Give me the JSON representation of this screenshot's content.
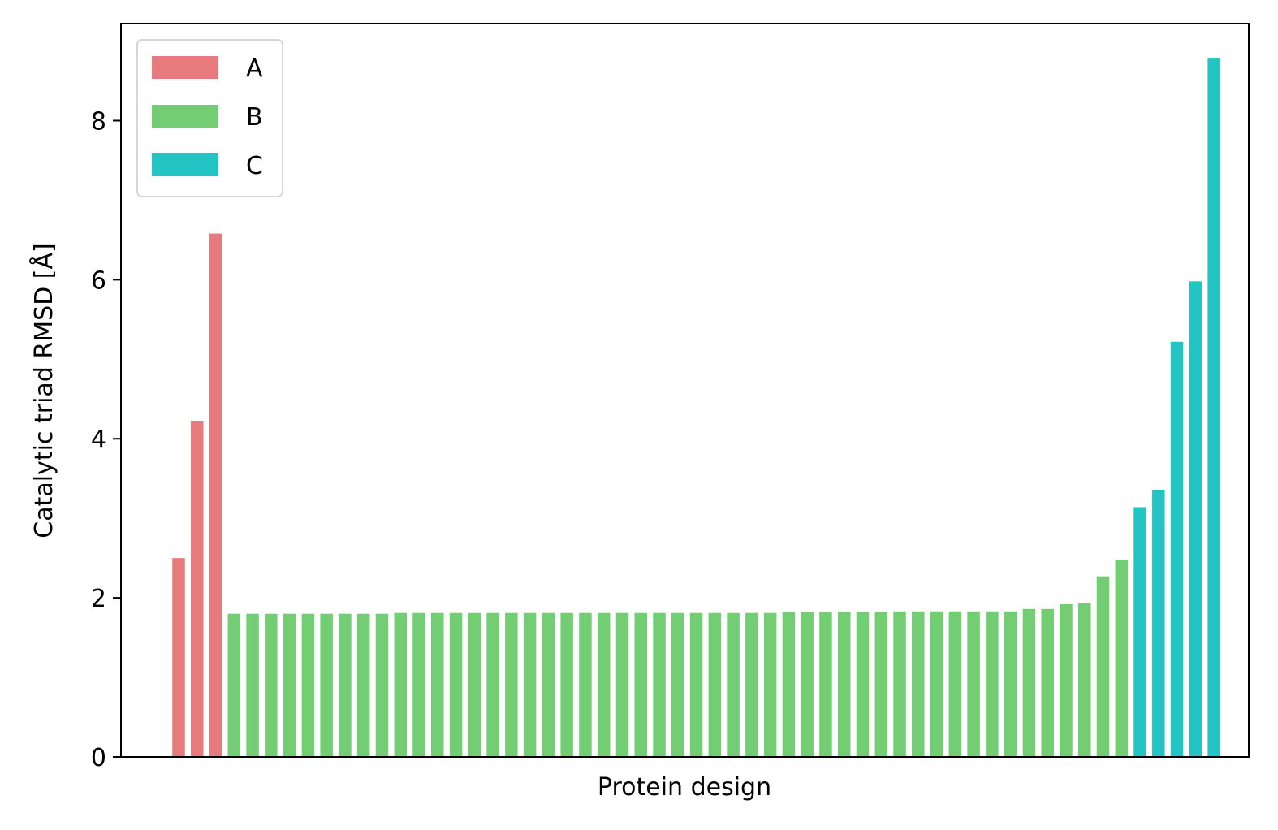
{
  "chart_data": {
    "type": "bar",
    "title": "",
    "xlabel": "Protein design",
    "ylabel": "Catalytic triad RMSD [Å]",
    "ylim": [
      0,
      9.22
    ],
    "yticks": [
      0,
      2,
      4,
      6,
      8
    ],
    "grid": false,
    "legend_position": "top-left",
    "series": [
      {
        "name": "A",
        "color": "#e67a7d",
        "values": [
          2.5,
          4.22,
          6.58
        ]
      },
      {
        "name": "B",
        "color": "#73cd73",
        "values": [
          1.8,
          1.8,
          1.8,
          1.8,
          1.8,
          1.8,
          1.8,
          1.8,
          1.8,
          1.81,
          1.81,
          1.81,
          1.81,
          1.81,
          1.81,
          1.81,
          1.81,
          1.81,
          1.81,
          1.81,
          1.81,
          1.81,
          1.81,
          1.81,
          1.81,
          1.81,
          1.81,
          1.81,
          1.81,
          1.81,
          1.82,
          1.82,
          1.82,
          1.82,
          1.82,
          1.82,
          1.83,
          1.83,
          1.83,
          1.83,
          1.83,
          1.83,
          1.83,
          1.86,
          1.86,
          1.92,
          1.94,
          2.27,
          2.48
        ]
      },
      {
        "name": "C",
        "color": "#22c4c4",
        "values": [
          3.14,
          3.36,
          5.22,
          5.98,
          8.78
        ]
      }
    ]
  }
}
